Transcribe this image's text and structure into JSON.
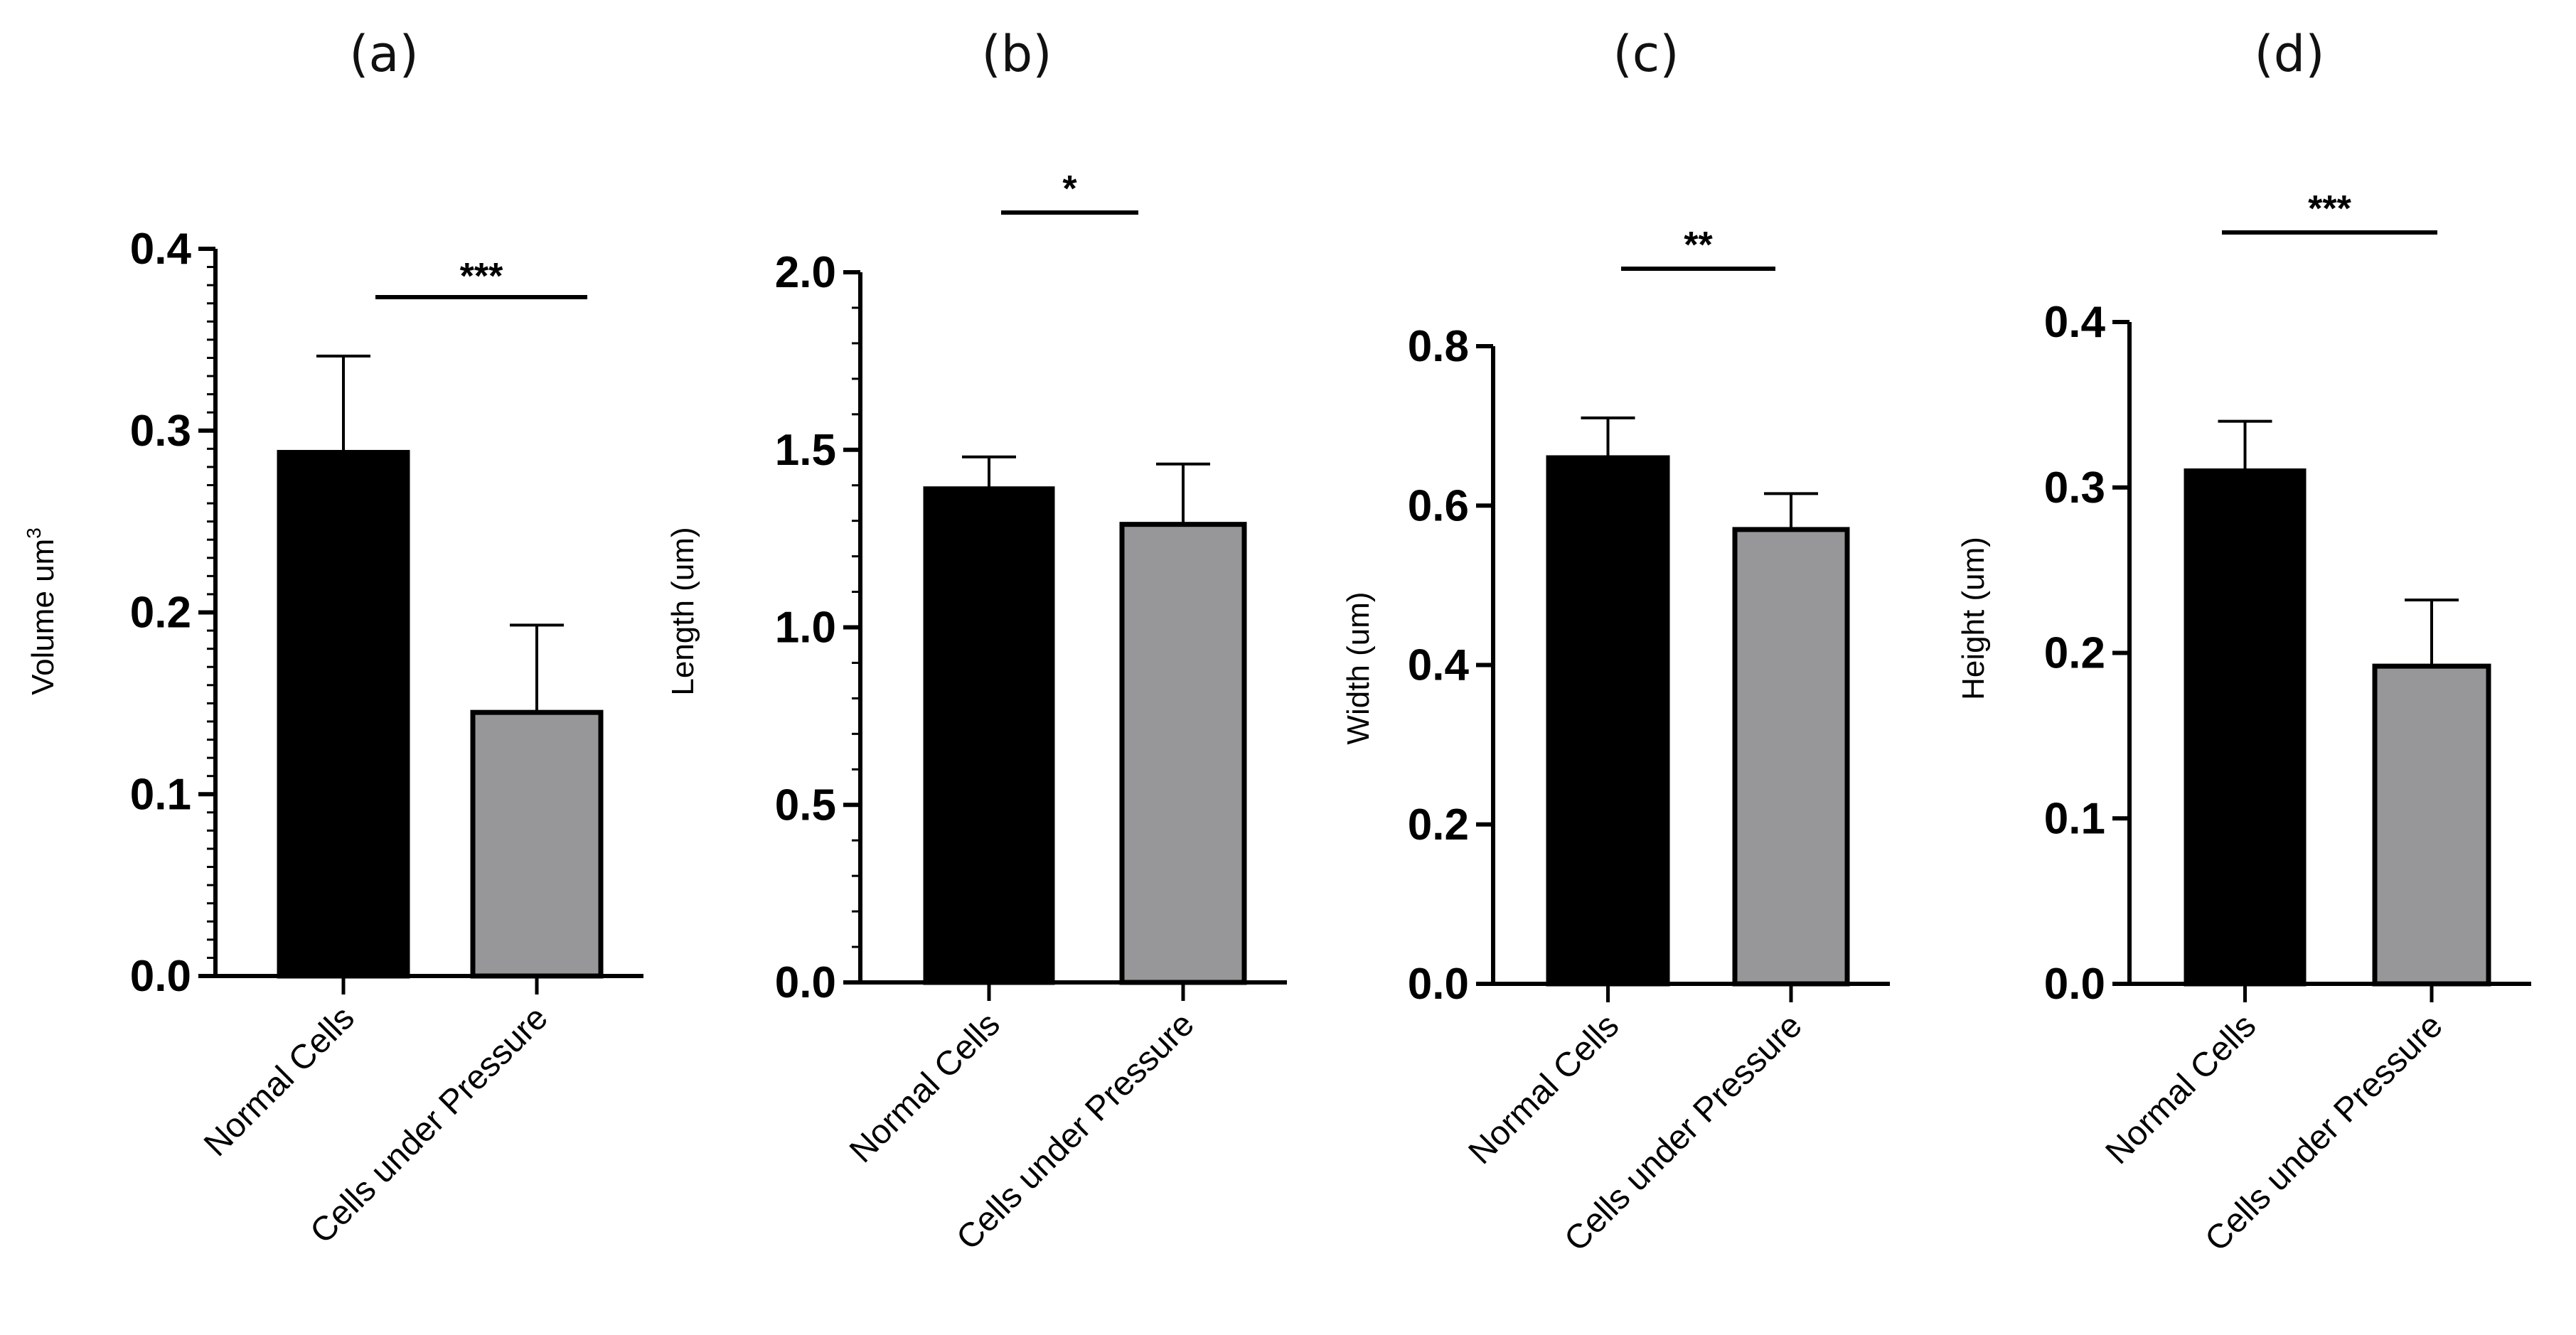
{
  "chart_data": [
    {
      "type": "bar",
      "panel": "(a)",
      "categories": [
        "Normal Cells",
        "Cells under Pressure"
      ],
      "values": [
        0.288,
        0.145
      ],
      "errors": [
        0.053,
        0.048
      ],
      "colors": [
        "#000000",
        "#97979a"
      ],
      "ylabel": "Volume um",
      "ylabel_sup": "3",
      "ylim": [
        0,
        0.4
      ],
      "yticks": [
        "0.0",
        "0.1",
        "0.2",
        "0.3",
        "0.4"
      ],
      "significance": "***"
    },
    {
      "type": "bar",
      "panel": "(b)",
      "categories": [
        "Normal Cells",
        "Cells under Pressure"
      ],
      "values": [
        1.39,
        1.29
      ],
      "errors": [
        0.09,
        0.17
      ],
      "colors": [
        "#000000",
        "#97979a"
      ],
      "ylabel": "Length (um)",
      "ylabel_sup": "",
      "ylim": [
        0,
        2.0
      ],
      "yticks": [
        "0.0",
        "0.5",
        "1.0",
        "1.5",
        "2.0"
      ],
      "significance": "*"
    },
    {
      "type": "bar",
      "panel": "(c)",
      "categories": [
        "Normal Cells",
        "Cells under Pressure"
      ],
      "values": [
        0.66,
        0.57
      ],
      "errors": [
        0.05,
        0.045
      ],
      "colors": [
        "#000000",
        "#97979a"
      ],
      "ylabel": "Width (um)",
      "ylabel_sup": "",
      "ylim": [
        0,
        0.8
      ],
      "yticks": [
        "0.0",
        "0.2",
        "0.4",
        "0.6",
        "0.8"
      ],
      "significance": "**"
    },
    {
      "type": "bar",
      "panel": "(d)",
      "categories": [
        "Normal Cells",
        "Cells under Pressure"
      ],
      "values": [
        0.31,
        0.192
      ],
      "errors": [
        0.03,
        0.04
      ],
      "colors": [
        "#000000",
        "#97979a"
      ],
      "ylabel": "Height (um)",
      "ylabel_sup": "",
      "ylim": [
        0,
        0.4
      ],
      "yticks": [
        "0.0",
        "0.1",
        "0.2",
        "0.3",
        "0.4"
      ],
      "significance": "***"
    }
  ]
}
